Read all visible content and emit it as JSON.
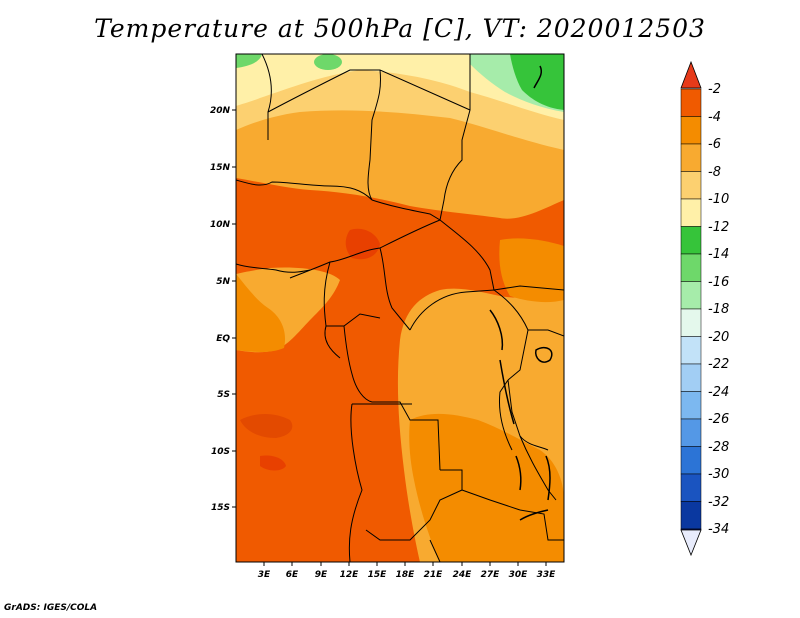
{
  "title": "Temperature at 500hPa [C], VT: 2020012503",
  "credit": "GrADS: IGES/COLA",
  "map": {
    "lat_labels": [
      "20N",
      "15N",
      "10N",
      "5N",
      "EQ",
      "5S",
      "10S",
      "15S"
    ],
    "lon_labels": [
      "3E",
      "6E",
      "9E",
      "12E",
      "15E",
      "18E",
      "21E",
      "24E",
      "27E",
      "30E",
      "33E"
    ],
    "extent": {
      "lon_min": 0.3,
      "lon_max": 34.2,
      "lat_min": -20.0,
      "lat_max": 25.0
    }
  },
  "colorbar": {
    "labels": [
      "-2",
      "-4",
      "-6",
      "-8",
      "-10",
      "-12",
      "-14",
      "-16",
      "-18",
      "-20",
      "-22",
      "-24",
      "-26",
      "-28",
      "-30",
      "-32",
      "-34"
    ],
    "colors": {
      "top_arrow": "#e63a1a",
      "steps": [
        "#f05a00",
        "#f48c00",
        "#f8aa30",
        "#fcd070",
        "#fff0a8",
        "#36c43a",
        "#6ed86a",
        "#a6ecaa",
        "#e4f8ec",
        "#c2e2f8",
        "#a2cef4",
        "#7cb8f0",
        "#5498e6",
        "#2c74d6",
        "#1a54c0",
        "#0a38a0",
        "#0c1880"
      ],
      "bottom_arrow": "#e8ecfc"
    }
  }
}
